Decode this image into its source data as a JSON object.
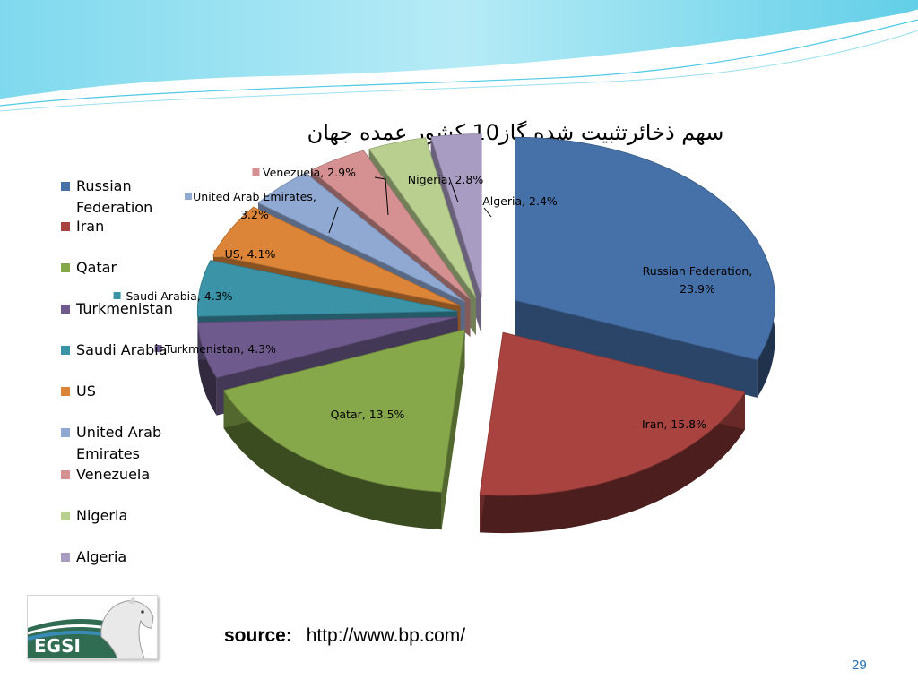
{
  "slide": {
    "source_label": "source:",
    "source_url": "http://www.bp.com/",
    "page_number": "29",
    "logo_text": "EGSI",
    "theme_color": "#4ec9e6"
  },
  "chart_data": {
    "type": "pie",
    "style": "3d-exploded",
    "title": "سهم ذخائرتثبیت شده گاز10 کشور عمده جهان",
    "legend_position": "left",
    "slices": [
      {
        "name": "Russian Federation",
        "value": 23.9,
        "color": "#4670a8",
        "label": "Russian Federation, 23.9%"
      },
      {
        "name": "Iran",
        "value": 15.8,
        "color": "#a84340",
        "label": "Iran, 15.8%"
      },
      {
        "name": "Qatar",
        "value": 13.5,
        "color": "#86a84a",
        "label": "Qatar, 13.5%"
      },
      {
        "name": "Turkmenistan",
        "value": 4.3,
        "color": "#6e5a8c",
        "label": "Turkmenistan, 4.3%"
      },
      {
        "name": "Saudi Arabia",
        "value": 4.3,
        "color": "#3b93a8",
        "label": "Saudi Arabia, 4.3%"
      },
      {
        "name": "US",
        "value": 4.1,
        "color": "#dc8437",
        "label": "US, 4.1%"
      },
      {
        "name": "United Arab Emirates",
        "value": 3.2,
        "color": "#8fa9d3",
        "label": "United Arab Emirates, 3.2%"
      },
      {
        "name": "Venezuela",
        "value": 2.9,
        "color": "#d59191",
        "label": "Venezuela, 2.9%"
      },
      {
        "name": "Nigeria",
        "value": 2.8,
        "color": "#b8cf8f",
        "label": "Nigeria, 2.8%"
      },
      {
        "name": "Algeria",
        "value": 2.4,
        "color": "#a99cc3",
        "label": "Algeria, 2.4%"
      }
    ]
  }
}
